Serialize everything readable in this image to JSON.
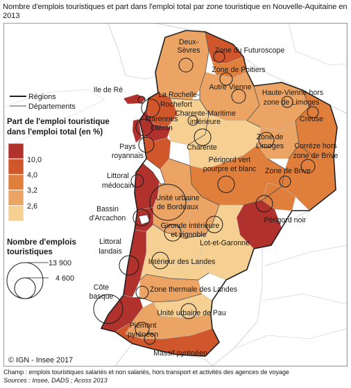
{
  "title": "Nombre d'emplois touristiques et part dans l'emploi total par zone touristique en Nouvelle-Aquitaine en 2013",
  "legend": {
    "regions_label": "Régions",
    "departements_label": "Départements",
    "share_title_line1": "Part de l'emploi touristique",
    "share_title_line2": "dans l'emploi total (en %)",
    "class_breaks": [
      "10,0",
      "4,0",
      "3,2",
      "2,6"
    ],
    "class_colors": [
      "#b1312c",
      "#d0572c",
      "#e07f3b",
      "#eba463",
      "#f6d092"
    ],
    "size_title_line1": "Nombre d'emplois",
    "size_title_line2": "touristiques",
    "size_values": [
      "13 900",
      "4 600"
    ]
  },
  "zones": [
    {
      "name": "Deux-Sèvres",
      "lines": [
        "Deux-",
        "Sèvres"
      ]
    },
    {
      "name": "Zone du Futuroscope",
      "lines": [
        "Zone du Futuroscope"
      ]
    },
    {
      "name": "Zone de Poitiers",
      "lines": [
        "Zone de Poitiers"
      ]
    },
    {
      "name": "Autre Vienne",
      "lines": [
        "Autre Vienne"
      ]
    },
    {
      "name": "Ile de Ré",
      "lines": [
        "Ile de Ré"
      ]
    },
    {
      "name": "La Rochelle-Rochefort",
      "lines": [
        "La Rochelle-",
        "Rochefort"
      ]
    },
    {
      "name": "Haute-Vienne hors zone de Limoges",
      "lines": [
        "Haute-Vienne hors",
        "zone de Limoges"
      ]
    },
    {
      "name": "Charente-Maritime intérieure",
      "lines": [
        "Charente-Maritime",
        "intérieure"
      ]
    },
    {
      "name": "Marennes Oléron",
      "lines": [
        "Marennes",
        "Oléron"
      ]
    },
    {
      "name": "Creuse",
      "lines": [
        "Creuse"
      ]
    },
    {
      "name": "Charente",
      "lines": [
        "Charente"
      ]
    },
    {
      "name": "Zone de Limoges",
      "lines": [
        "Zone de",
        "Limoges"
      ]
    },
    {
      "name": "Pays royannais",
      "lines": [
        "Pays",
        "royannais"
      ]
    },
    {
      "name": "Corrèze hors zone de Brive",
      "lines": [
        "Corrèze hors",
        "zone de Brive"
      ]
    },
    {
      "name": "Périgord vert pourpre et blanc",
      "lines": [
        "Périgord vert",
        "pourpre et blanc"
      ]
    },
    {
      "name": "Littoral médocain",
      "lines": [
        "Littoral",
        "médocain"
      ]
    },
    {
      "name": "Zone de Brive",
      "lines": [
        "Zone de Brive"
      ]
    },
    {
      "name": "Unité urbaine de Bordeaux",
      "lines": [
        "Unité urbaine",
        "de Bordeaux"
      ]
    },
    {
      "name": "Bassin d'Arcachon",
      "lines": [
        "Bassin",
        "d'Arcachon"
      ]
    },
    {
      "name": "Périgord noir",
      "lines": [
        "Périgord noir"
      ]
    },
    {
      "name": "Gironde intérieure et vignoble",
      "lines": [
        "Gironde intérieure",
        "et vignoble"
      ]
    },
    {
      "name": "Littoral landais",
      "lines": [
        "Littoral",
        "landais"
      ]
    },
    {
      "name": "Lot-et-Garonne",
      "lines": [
        "Lot-et-Garonne"
      ]
    },
    {
      "name": "Intérieur des Landes",
      "lines": [
        "Intérieur des Landes"
      ]
    },
    {
      "name": "Côte basque",
      "lines": [
        "Côte",
        "basque"
      ]
    },
    {
      "name": "Zone thermale des Landes",
      "lines": [
        "Zone thermale des Landes"
      ]
    },
    {
      "name": "Unité urbaine de Pau",
      "lines": [
        "Unité urbaine de Pau"
      ]
    },
    {
      "name": "Piémont pyrénéen",
      "lines": [
        "Piémont",
        "pyrénéen"
      ]
    },
    {
      "name": "Massif pyrénéen",
      "lines": [
        "Massif pyrénéen"
      ]
    }
  ],
  "copyright": "© IGN - Insee 2017",
  "footnote_scope": "Champ : emplois touristiques salariés et non salariés, hors transport et activités des agences de voyage",
  "footnote_sources": "Sources : Insee, DADS ; Acoss 2013"
}
